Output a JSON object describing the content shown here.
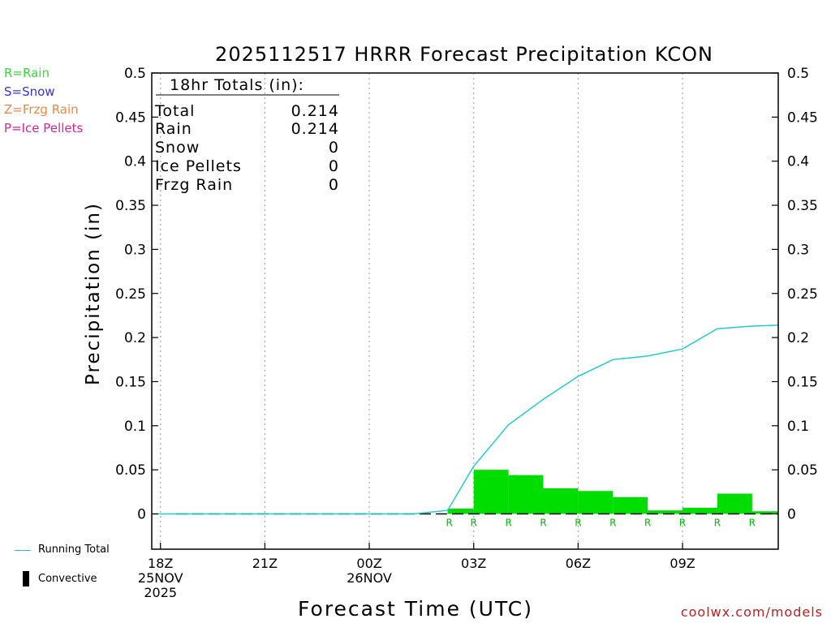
{
  "chart_data": {
    "type": "bar",
    "title": "2025112517 HRRR Forecast Precipitation KCON",
    "xlabel": "Forecast Time (UTC)",
    "ylabel": "Precipitation (in)",
    "ylim": [
      -0.04,
      0.5
    ],
    "y_ticks": [
      "0.5",
      "0.45",
      "0.4",
      "0.35",
      "0.3",
      "0.25",
      "0.2",
      "0.15",
      "0.1",
      "0.05",
      "0"
    ],
    "y_tick_values": [
      0.5,
      0.45,
      0.4,
      0.35,
      0.3,
      0.25,
      0.2,
      0.15,
      0.1,
      0.05,
      0
    ],
    "xlim_hours": [
      17.75,
      35.75
    ],
    "x_ticks": [
      {
        "hour": 18,
        "lines": [
          "18Z",
          "25NOV",
          "2025"
        ]
      },
      {
        "hour": 21,
        "lines": [
          "21Z"
        ]
      },
      {
        "hour": 24,
        "lines": [
          "00Z",
          "26NOV"
        ]
      },
      {
        "hour": 27,
        "lines": [
          "03Z"
        ]
      },
      {
        "hour": 30,
        "lines": [
          "06Z"
        ]
      },
      {
        "hour": 33,
        "lines": [
          "09Z"
        ]
      }
    ],
    "bars": [
      {
        "start": 26.25,
        "end": 27.0,
        "value": 0.006,
        "type": "R"
      },
      {
        "start": 27.0,
        "end": 28.0,
        "value": 0.05,
        "type": "R"
      },
      {
        "start": 28.0,
        "end": 29.0,
        "value": 0.044,
        "type": "R"
      },
      {
        "start": 29.0,
        "end": 30.0,
        "value": 0.029,
        "type": "R"
      },
      {
        "start": 30.0,
        "end": 31.0,
        "value": 0.026,
        "type": "R"
      },
      {
        "start": 31.0,
        "end": 32.0,
        "value": 0.019,
        "type": "R"
      },
      {
        "start": 32.0,
        "end": 33.0,
        "value": 0.004,
        "type": "R"
      },
      {
        "start": 33.0,
        "end": 34.0,
        "value": 0.007,
        "type": "R"
      },
      {
        "start": 34.0,
        "end": 35.0,
        "value": 0.023,
        "type": "R"
      },
      {
        "start": 35.0,
        "end": 35.75,
        "value": 0.003,
        "type": "R"
      }
    ],
    "rain_markers": [
      {
        "hour": 26.3,
        "label": "R"
      },
      {
        "hour": 27.0,
        "label": "R"
      },
      {
        "hour": 28.0,
        "label": "R"
      },
      {
        "hour": 29.0,
        "label": "R"
      },
      {
        "hour": 30.0,
        "label": "R"
      },
      {
        "hour": 31.0,
        "label": "R"
      },
      {
        "hour": 32.0,
        "label": "R"
      },
      {
        "hour": 33.0,
        "label": "R"
      },
      {
        "hour": 34.0,
        "label": "R"
      },
      {
        "hour": 35.0,
        "label": "R"
      }
    ],
    "running_total": {
      "name": "Running Total",
      "points": [
        [
          17.75,
          0
        ],
        [
          25.25,
          0
        ],
        [
          26.25,
          0.004
        ],
        [
          27.0,
          0.054
        ],
        [
          28.0,
          0.101
        ],
        [
          29.0,
          0.13
        ],
        [
          30.0,
          0.156
        ],
        [
          31.0,
          0.175
        ],
        [
          32.0,
          0.179
        ],
        [
          33.0,
          0.187
        ],
        [
          34.0,
          0.21
        ],
        [
          35.0,
          0.213
        ],
        [
          35.75,
          0.214
        ]
      ]
    },
    "convective_line": {
      "start": 17.75,
      "end": 35.75,
      "value": 0
    }
  },
  "totals": {
    "header": "18hr Totals (in):",
    "rows": [
      {
        "label": "Total",
        "value": "0.214"
      },
      {
        "label": "Rain",
        "value": "0.214"
      },
      {
        "label": "Snow",
        "value": "0"
      },
      {
        "label": "Ice Pellets",
        "value": "0"
      },
      {
        "label": "Frzg Rain",
        "value": "0"
      }
    ]
  },
  "type_legend": [
    {
      "text": "R=Rain",
      "color": "#33dd33"
    },
    {
      "text": "S=Snow",
      "color": "#3333dd"
    },
    {
      "text": "Z=Frzg Rain",
      "color": "#ee8844"
    },
    {
      "text": "P=Ice Pellets",
      "color": "#dd2299"
    }
  ],
  "series_legend": {
    "running_total": "Running Total",
    "convective": "Convective"
  },
  "credit": "coolwx.com/models",
  "colors": {
    "bar": "#00dd00",
    "running_total": "#22cccc",
    "rain_marker": "#00bb00",
    "grid": "#aaaaaa",
    "axis": "#000000",
    "credit": "#c02020"
  }
}
